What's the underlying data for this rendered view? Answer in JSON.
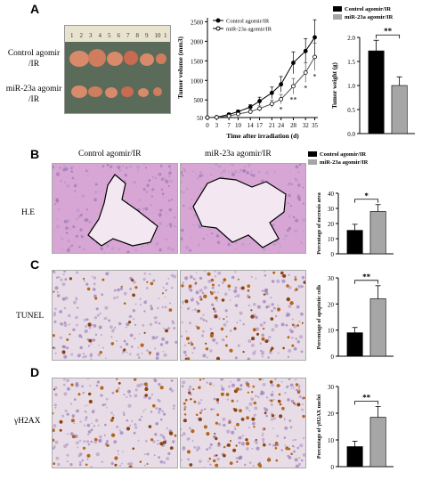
{
  "panels": {
    "A": {
      "letter": "A",
      "row_labels": [
        "Control agomir\n/IR",
        "miR-23a agomir\n/IR"
      ],
      "ruler_numbers": [
        "1",
        "2",
        "3",
        "4",
        "5",
        "6",
        "7",
        "8",
        "9",
        "10",
        "1"
      ]
    },
    "B": {
      "letter": "B",
      "stain": "H.E"
    },
    "C": {
      "letter": "C",
      "stain": "TUNEL"
    },
    "D": {
      "letter": "D",
      "stain": "γH2AX"
    }
  },
  "column_labels": [
    "Control agomir/IR",
    "miR-23a agomir/IR"
  ],
  "colors": {
    "control": "#000000",
    "mir23a": "#a6a6a6",
    "he_background": "#d8a6d4",
    "ihc_background": "#e8dde6"
  },
  "chart_data": [
    {
      "id": "tumor-volume",
      "type": "line",
      "xlabel": "Time after irradiation (d)",
      "ylabel": "Tumor volume (mm3)",
      "x": [
        0,
        3,
        7,
        10,
        14,
        17,
        21,
        24,
        28,
        32,
        35
      ],
      "xticks": [
        "0",
        "3",
        "7",
        "10",
        "14",
        "17",
        "21",
        "24",
        "28",
        "32",
        "35"
      ],
      "yticks": [
        "50",
        "500",
        "1000",
        "1500",
        "2000",
        "2500"
      ],
      "ylim": [
        50,
        2600
      ],
      "legend_position": "top-left",
      "series": [
        {
          "name": "Control agomir/IR",
          "marker": "filled-circle",
          "values": [
            50,
            60,
            130,
            200,
            320,
            470,
            680,
            900,
            1450,
            1750,
            2100
          ],
          "errors": [
            5,
            10,
            20,
            40,
            60,
            100,
            150,
            200,
            280,
            320,
            450
          ]
        },
        {
          "name": "miR-23a agomir/IR",
          "marker": "open-circle",
          "values": [
            50,
            55,
            90,
            140,
            200,
            280,
            400,
            520,
            850,
            1200,
            1600
          ],
          "errors": [
            5,
            8,
            15,
            30,
            50,
            70,
            90,
            120,
            200,
            250,
            350
          ]
        }
      ],
      "significance": [
        {
          "x": 24,
          "label": "*"
        },
        {
          "x": 28,
          "label": "**"
        },
        {
          "x": 32,
          "label": "*"
        },
        {
          "x": 35,
          "label": "*"
        }
      ]
    },
    {
      "id": "tumor-weight",
      "type": "bar",
      "ylabel": "Tumor weight (g)",
      "yticks": [
        "0.0",
        "0.5",
        "1.0",
        "1.5",
        "2.0"
      ],
      "ylim": [
        0,
        2.0
      ],
      "legend": [
        "Control agomir/IR",
        "miR-23a agomir/IR"
      ],
      "categories": [
        "Control agomir/IR",
        "miR-23a agomir/IR"
      ],
      "values": [
        1.72,
        1.0
      ],
      "errors": [
        0.22,
        0.18
      ],
      "significance": "**"
    },
    {
      "id": "necrosis",
      "type": "bar",
      "ylabel": "Percentage of necrosis area",
      "yticks": [
        "0",
        "10",
        "20",
        "30",
        "40"
      ],
      "ylim": [
        0,
        40
      ],
      "legend": [
        "Control agomir/IR",
        "miR-23a agomir/IR"
      ],
      "categories": [
        "Control agomir/IR",
        "miR-23a agomir/IR"
      ],
      "values": [
        15.5,
        28
      ],
      "errors": [
        4,
        4.5
      ],
      "significance": "*"
    },
    {
      "id": "apoptotic",
      "type": "bar",
      "ylabel": "Percentage of apoptotic cells",
      "yticks": [
        "0",
        "10",
        "20",
        "30"
      ],
      "ylim": [
        0,
        30
      ],
      "categories": [
        "Control agomir/IR",
        "miR-23a agomir/IR"
      ],
      "values": [
        9,
        22
      ],
      "errors": [
        2,
        5
      ],
      "significance": "**"
    },
    {
      "id": "h2ax",
      "type": "bar",
      "ylabel": "Percentage of γH2AX nuclei",
      "yticks": [
        "0",
        "10",
        "20",
        "30"
      ],
      "ylim": [
        0,
        30
      ],
      "categories": [
        "Control agomir/IR",
        "miR-23a agomir/IR"
      ],
      "values": [
        7.5,
        18.5
      ],
      "errors": [
        2,
        4
      ],
      "significance": "**"
    }
  ]
}
